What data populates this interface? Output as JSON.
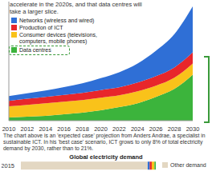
{
  "header": "accelerate in the 2020s, and that data centres will take a larger slice.",
  "caption": "The chart above is an 'expected case' projection from Anders Andrae, a specialist in sustainable ICT. In his 'best case' scenario, ICT grows to only 8% of total electricity demand by 2030, rather than to 21%.",
  "chart_data": [
    {
      "type": "area",
      "stacked": true,
      "legend": "upper left",
      "tick_labels": "x",
      "categories": [
        "2010",
        "2012",
        "2014",
        "2016",
        "2018",
        "2020",
        "2022",
        "2024",
        "2026",
        "2028",
        "2030"
      ],
      "ylim": [
        0,
        7500
      ],
      "series": [
        {
          "name": "Networks (wireless and wired)",
          "color": "#2f6fd6",
          "values": [
            300,
            350,
            400,
            500,
            600,
            750,
            950,
            1200,
            1600,
            2100,
            2900
          ]
        },
        {
          "name": "Production of ICT",
          "color": "#e8262b",
          "values": [
            350,
            380,
            400,
            420,
            450,
            480,
            500,
            550,
            600,
            650,
            700
          ]
        },
        {
          "name": "Consumer devices (televisions, computers, mobile phones)",
          "color": "#f9c21a",
          "values": [
            700,
            750,
            800,
            800,
            800,
            800,
            750,
            750,
            700,
            700,
            700
          ]
        },
        {
          "name": "Data centres",
          "color": "#3cb43c",
          "values": [
            200,
            250,
            300,
            400,
            500,
            650,
            850,
            1100,
            1500,
            2000,
            2900
          ]
        }
      ]
    },
    {
      "type": "bar",
      "orientation": "horizontal",
      "stacked": true,
      "title": "Global electricity demand",
      "tick_labels": "y",
      "categories": [
        "2015"
      ],
      "xlim": [
        0,
        100
      ],
      "legend": "right",
      "series": [
        {
          "name": "Other demand",
          "color": "#e3d7c2",
          "values": [
            94
          ]
        },
        {
          "name": "Networks (wireless and wired)",
          "color": "#2f6fd6",
          "values": [
            1.5
          ]
        },
        {
          "name": "Production of ICT",
          "color": "#e8262b",
          "values": [
            1.5
          ]
        },
        {
          "name": "Consumer devices (televisions, computers, mobile phones)",
          "color": "#f9c21a",
          "values": [
            2
          ]
        },
        {
          "name": "Data centres",
          "color": "#3cb43c",
          "values": [
            1
          ]
        }
      ]
    }
  ]
}
